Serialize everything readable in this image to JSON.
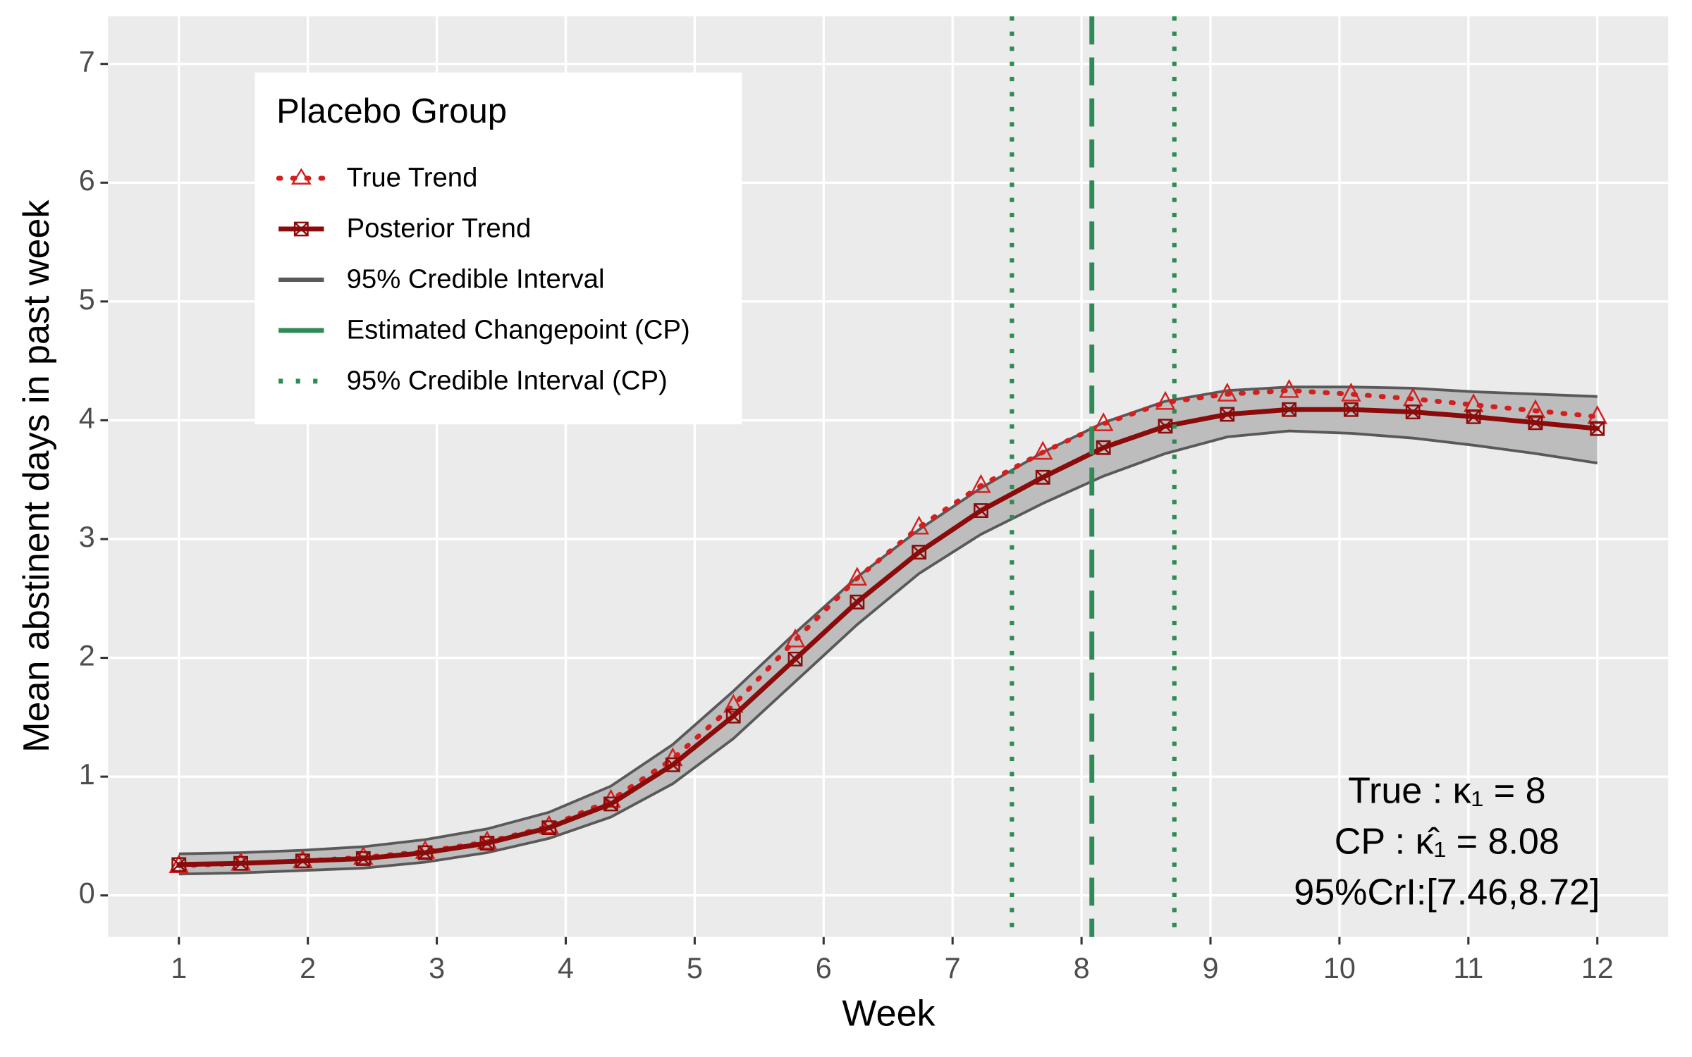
{
  "chart_data": {
    "type": "line",
    "x_label": "Week",
    "y_label": "Mean abstinent days in past week",
    "legend_title": "Placebo Group",
    "legend_position": "top-left",
    "x": [
      1,
      1.48,
      1.96,
      2.43,
      2.91,
      3.39,
      3.87,
      4.35,
      4.83,
      5.3,
      5.78,
      6.26,
      6.74,
      7.22,
      7.7,
      8.17,
      8.65,
      9.13,
      9.61,
      10.09,
      10.57,
      11.04,
      11.52,
      12
    ],
    "series": [
      {
        "name": "True Trend",
        "color": "#d41f1f",
        "values": [
          0.25,
          0.27,
          0.29,
          0.32,
          0.37,
          0.45,
          0.58,
          0.8,
          1.15,
          1.6,
          2.15,
          2.67,
          3.1,
          3.45,
          3.73,
          3.97,
          4.15,
          4.22,
          4.25,
          4.22,
          4.18,
          4.13,
          4.08,
          4.03
        ]
      },
      {
        "name": "Posterior Trend",
        "color": "#8b0a0a",
        "values": [
          0.26,
          0.27,
          0.29,
          0.31,
          0.36,
          0.44,
          0.57,
          0.77,
          1.1,
          1.51,
          1.99,
          2.47,
          2.89,
          3.24,
          3.52,
          3.77,
          3.95,
          4.05,
          4.09,
          4.09,
          4.07,
          4.03,
          3.98,
          3.93
        ]
      }
    ],
    "interval": {
      "name": "95% Credible Interval",
      "color": "#595959",
      "fill": "#bdbdbd",
      "lower": [
        0.18,
        0.19,
        0.21,
        0.23,
        0.28,
        0.36,
        0.48,
        0.66,
        0.94,
        1.32,
        1.8,
        2.28,
        2.71,
        3.04,
        3.3,
        3.53,
        3.72,
        3.86,
        3.91,
        3.89,
        3.85,
        3.79,
        3.72,
        3.64
      ],
      "upper": [
        0.35,
        0.36,
        0.38,
        0.41,
        0.47,
        0.56,
        0.7,
        0.92,
        1.27,
        1.72,
        2.21,
        2.68,
        3.08,
        3.43,
        3.73,
        3.98,
        4.16,
        4.25,
        4.28,
        4.28,
        4.27,
        4.24,
        4.22,
        4.2
      ]
    },
    "changepoint": {
      "name": "Estimated Changepoint (CP)",
      "color": "#2e8b57",
      "value": 8.08
    },
    "changepoint_interval": {
      "name": "95% Credible Interval (CP)",
      "color": "#2e8b57",
      "values": [
        7.46,
        8.72
      ]
    },
    "annotations": [
      "True :  κ₁ = 8",
      "CP :  κ̂₁ = 8.08",
      "95%CrI:[7.46,8.72]"
    ],
    "xlim": [
      0.45,
      12.55
    ],
    "ylim": [
      -0.35,
      7.4
    ],
    "xticks": [
      1,
      2,
      3,
      4,
      5,
      6,
      7,
      8,
      9,
      10,
      11,
      12
    ],
    "yticks": [
      0,
      1,
      2,
      3,
      4,
      5,
      6,
      7
    ],
    "grid": true
  }
}
